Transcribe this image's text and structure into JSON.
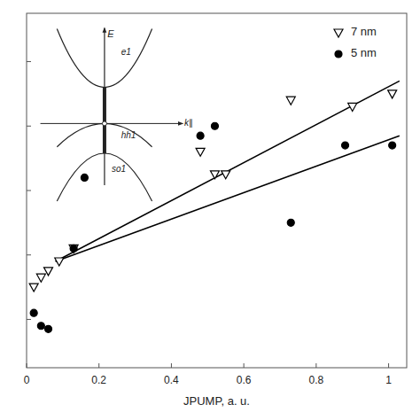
{
  "chart_data": {
    "type": "scatter",
    "xlabel": "JPUMP, a. u.",
    "xlim": [
      0,
      1.05
    ],
    "ylim": [
      -0.55,
      0.55
    ],
    "xticks": [
      0,
      0.2,
      0.4,
      0.6,
      0.8,
      1
    ],
    "yticks": [
      -0.4,
      -0.2,
      0.0,
      0.2,
      0.4
    ],
    "tick_labels": "x",
    "grid": false,
    "legend": "upper right",
    "annotations": [
      "E",
      "e1",
      "k∥",
      "hh1",
      "so1"
    ],
    "series": [
      {
        "name": "7 nm",
        "type": "scatter",
        "marker": "triangle-down",
        "color": "black",
        "x": [
          0.02,
          0.04,
          0.06,
          0.09,
          0.13,
          0.48,
          0.52,
          0.55,
          0.73,
          0.9,
          1.01
        ],
        "values": [
          -0.3,
          -0.27,
          -0.25,
          -0.22,
          -0.18,
          0.12,
          0.05,
          0.05,
          0.28,
          0.26,
          0.3
        ]
      },
      {
        "name": "5 nm",
        "type": "scatter",
        "marker": "circle",
        "color": "black",
        "x": [
          0.02,
          0.04,
          0.06,
          0.13,
          0.16,
          0.48,
          0.52,
          0.73,
          0.88,
          1.01
        ],
        "values": [
          -0.38,
          -0.42,
          -0.43,
          -0.18,
          0.04,
          0.17,
          0.2,
          -0.1,
          0.14,
          0.14
        ]
      },
      {
        "type": "line",
        "line_style": "solid",
        "color": "black",
        "x": [
          0.08,
          1.03
        ],
        "values": [
          -0.22,
          0.34
        ]
      },
      {
        "type": "line",
        "line_style": "solid",
        "color": "black",
        "x": [
          0.08,
          1.03
        ],
        "values": [
          -0.22,
          0.17
        ]
      }
    ]
  }
}
